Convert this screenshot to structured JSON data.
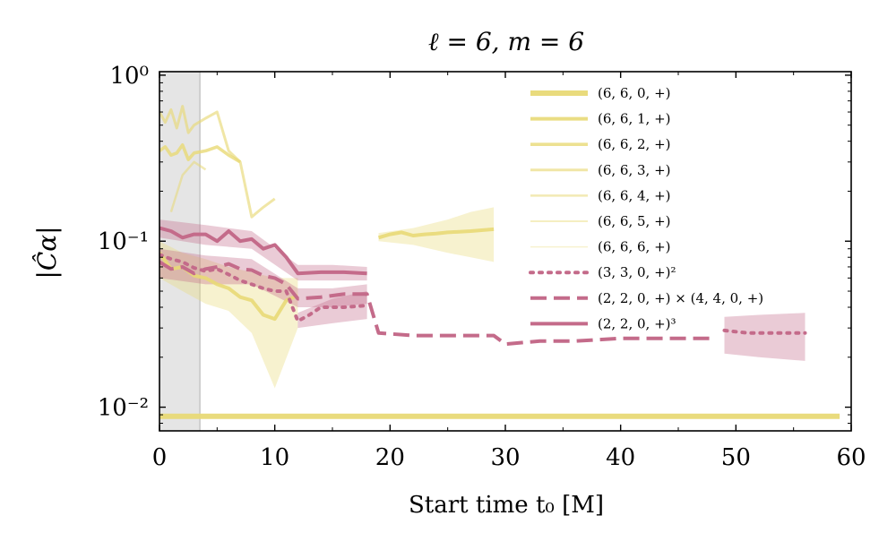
{
  "chart_data": {
    "type": "line",
    "title": "ℓ = 6, m = 6",
    "xlabel": "Start time t₀ [M]",
    "ylabel": "|Ĉα|",
    "xlim": [
      0,
      60
    ],
    "ylim": [
      0.0072,
      1.05
    ],
    "yscale": "log",
    "grid": false,
    "legend_position": "upper right",
    "shaded_region": [
      0,
      3.5
    ],
    "x_ticks": [
      0,
      10,
      20,
      30,
      40,
      50,
      60
    ],
    "x_tick_labels": [
      "0",
      "10",
      "20",
      "30",
      "40",
      "50",
      "60"
    ],
    "y_ticks": [
      1,
      0.1,
      0.01
    ],
    "y_tick_labels": [
      "10⁰",
      "10⁻¹",
      "10⁻²"
    ],
    "colors": {
      "yellow": "#e8d976",
      "pink": "#c46b8a",
      "shade": "#e5e5e5"
    },
    "series": [
      {
        "name": "(6, 6, 0, +)",
        "color": "#e8d976",
        "style": "solid",
        "width": 6,
        "opacity": 0.95,
        "segments": [
          [
            [
              0,
              0.0088
            ],
            [
              10,
              0.0088
            ],
            [
              20,
              0.0088
            ],
            [
              30,
              0.0088
            ],
            [
              40,
              0.0088
            ],
            [
              50,
              0.0088
            ],
            [
              59,
              0.0088
            ]
          ]
        ]
      },
      {
        "name": "(6, 6, 1, +)",
        "color": "#e8d976",
        "style": "solid",
        "width": 4,
        "opacity": 0.9,
        "segments": [
          [
            [
              0,
              0.085
            ],
            [
              1,
              0.068
            ],
            [
              2,
              0.07
            ],
            [
              3,
              0.062
            ],
            [
              4,
              0.06
            ],
            [
              5,
              0.055
            ],
            [
              6,
              0.052
            ],
            [
              7,
              0.046
            ],
            [
              8,
              0.044
            ],
            [
              9,
              0.036
            ],
            [
              10,
              0.034
            ],
            [
              11,
              0.044
            ],
            [
              12,
              0.047
            ]
          ],
          [
            [
              19,
              0.105
            ],
            [
              20,
              0.11
            ],
            [
              21,
              0.113
            ],
            [
              22,
              0.108
            ],
            [
              23,
              0.11
            ],
            [
              24,
              0.111
            ],
            [
              25,
              0.113
            ],
            [
              27,
              0.115
            ],
            [
              29,
              0.118
            ]
          ]
        ],
        "band": [
          {
            "x": [
              0,
              2,
              4,
              6,
              8,
              10,
              12
            ],
            "lo": [
              0.06,
              0.05,
              0.042,
              0.038,
              0.028,
              0.013,
              0.03
            ],
            "hi": [
              0.1,
              0.085,
              0.078,
              0.07,
              0.065,
              0.06,
              0.06
            ]
          },
          {
            "x": [
              19,
              22,
              25,
              27,
              29
            ],
            "lo": [
              0.1,
              0.095,
              0.085,
              0.08,
              0.075
            ],
            "hi": [
              0.112,
              0.12,
              0.135,
              0.15,
              0.16
            ]
          }
        ]
      },
      {
        "name": "(6, 6, 2, +)",
        "color": "#e8d976",
        "style": "solid",
        "width": 3.6,
        "opacity": 0.8,
        "segments": [
          [
            [
              0,
              0.35
            ],
            [
              0.5,
              0.37
            ],
            [
              1,
              0.33
            ],
            [
              1.5,
              0.34
            ],
            [
              2,
              0.38
            ],
            [
              2.5,
              0.31
            ],
            [
              3,
              0.34
            ],
            [
              4,
              0.35
            ],
            [
              5,
              0.37
            ],
            [
              6,
              0.33
            ],
            [
              7,
              0.3
            ]
          ]
        ]
      },
      {
        "name": "(6, 6, 3, +)",
        "color": "#e8d976",
        "style": "solid",
        "width": 3,
        "opacity": 0.65,
        "segments": [
          [
            [
              0,
              0.6
            ],
            [
              0.5,
              0.52
            ],
            [
              1,
              0.62
            ],
            [
              1.5,
              0.48
            ],
            [
              2,
              0.65
            ],
            [
              2.5,
              0.45
            ],
            [
              3,
              0.5
            ],
            [
              4,
              0.55
            ],
            [
              5,
              0.6
            ],
            [
              6,
              0.35
            ],
            [
              7,
              0.3
            ],
            [
              8,
              0.14
            ],
            [
              9,
              0.16
            ],
            [
              10,
              0.18
            ]
          ]
        ]
      },
      {
        "name": "(6, 6, 4, +)",
        "color": "#e8d976",
        "style": "solid",
        "width": 2.5,
        "opacity": 0.55,
        "segments": [
          [
            [
              1,
              0.15
            ],
            [
              2,
              0.25
            ],
            [
              3,
              0.3
            ],
            [
              4,
              0.27
            ]
          ]
        ]
      },
      {
        "name": "(6, 6, 5, +)",
        "color": "#e8d976",
        "style": "solid",
        "width": 2,
        "opacity": 0.45,
        "segments": []
      },
      {
        "name": "(6, 6, 6, +)",
        "color": "#e8d976",
        "style": "solid",
        "width": 1.5,
        "opacity": 0.35,
        "segments": []
      },
      {
        "name": "(3, 3, 0, +)²",
        "color": "#c46b8a",
        "style": "dotted",
        "width": 4,
        "opacity": 1,
        "segments": [
          [
            [
              0,
              0.083
            ],
            [
              1,
              0.078
            ],
            [
              2,
              0.075
            ],
            [
              3,
              0.069
            ],
            [
              4,
              0.066
            ],
            [
              5,
              0.068
            ],
            [
              6,
              0.063
            ],
            [
              7,
              0.058
            ],
            [
              8,
              0.055
            ],
            [
              9,
              0.052
            ],
            [
              10,
              0.05
            ],
            [
              11,
              0.05
            ],
            [
              12,
              0.033
            ],
            [
              13,
              0.036
            ],
            [
              14,
              0.04
            ],
            [
              16,
              0.04
            ],
            [
              18,
              0.041
            ]
          ],
          [
            [
              49,
              0.029
            ],
            [
              51,
              0.028
            ],
            [
              53,
              0.028
            ],
            [
              56,
              0.028
            ]
          ]
        ],
        "band": [
          {
            "x": [
              12,
              15,
              18
            ],
            "lo": [
              0.03,
              0.032,
              0.034
            ],
            "hi": [
              0.037,
              0.045,
              0.05
            ]
          },
          {
            "x": [
              49,
              52,
              56
            ],
            "lo": [
              0.021,
              0.02,
              0.019
            ],
            "hi": [
              0.035,
              0.036,
              0.037
            ]
          }
        ]
      },
      {
        "name": "(2, 2, 0, +) × (4, 4, 0, +)",
        "color": "#c46b8a",
        "style": "dashed",
        "width": 4,
        "opacity": 1,
        "segments": [
          [
            [
              0,
              0.075
            ],
            [
              1,
              0.068
            ],
            [
              2,
              0.07
            ],
            [
              3,
              0.064
            ],
            [
              4,
              0.068
            ],
            [
              5,
              0.07
            ],
            [
              6,
              0.073
            ],
            [
              7,
              0.068
            ],
            [
              8,
              0.067
            ],
            [
              9,
              0.062
            ],
            [
              10,
              0.06
            ],
            [
              11,
              0.055
            ],
            [
              12,
              0.045
            ],
            [
              14,
              0.046
            ],
            [
              16,
              0.048
            ],
            [
              18,
              0.048
            ],
            [
              19,
              0.028
            ],
            [
              22,
              0.027
            ],
            [
              26,
              0.027
            ],
            [
              29,
              0.027
            ],
            [
              30,
              0.024
            ],
            [
              33,
              0.025
            ],
            [
              36,
              0.025
            ],
            [
              40,
              0.026
            ],
            [
              44,
              0.026
            ],
            [
              48,
              0.026
            ]
          ]
        ],
        "band": [
          {
            "x": [
              0,
              4,
              8,
              12,
              15,
              18
            ],
            "lo": [
              0.06,
              0.055,
              0.055,
              0.04,
              0.04,
              0.042
            ],
            "hi": [
              0.09,
              0.082,
              0.078,
              0.052,
              0.052,
              0.055
            ]
          }
        ]
      },
      {
        "name": "(2, 2, 0, +)³",
        "color": "#c46b8a",
        "style": "solid",
        "width": 4,
        "opacity": 1,
        "segments": [
          [
            [
              0,
              0.12
            ],
            [
              1,
              0.115
            ],
            [
              2,
              0.105
            ],
            [
              3,
              0.11
            ],
            [
              4,
              0.11
            ],
            [
              5,
              0.1
            ],
            [
              6,
              0.115
            ],
            [
              7,
              0.1
            ],
            [
              8,
              0.103
            ],
            [
              9,
              0.09
            ],
            [
              10,
              0.095
            ],
            [
              11,
              0.08
            ],
            [
              12,
              0.064
            ],
            [
              14,
              0.065
            ],
            [
              16,
              0.065
            ],
            [
              18,
              0.064
            ]
          ]
        ],
        "band": [
          {
            "x": [
              0,
              4,
              8,
              12,
              15,
              18
            ],
            "lo": [
              0.105,
              0.095,
              0.09,
              0.058,
              0.058,
              0.058
            ],
            "hi": [
              0.135,
              0.125,
              0.115,
              0.072,
              0.072,
              0.07
            ]
          }
        ]
      }
    ]
  }
}
